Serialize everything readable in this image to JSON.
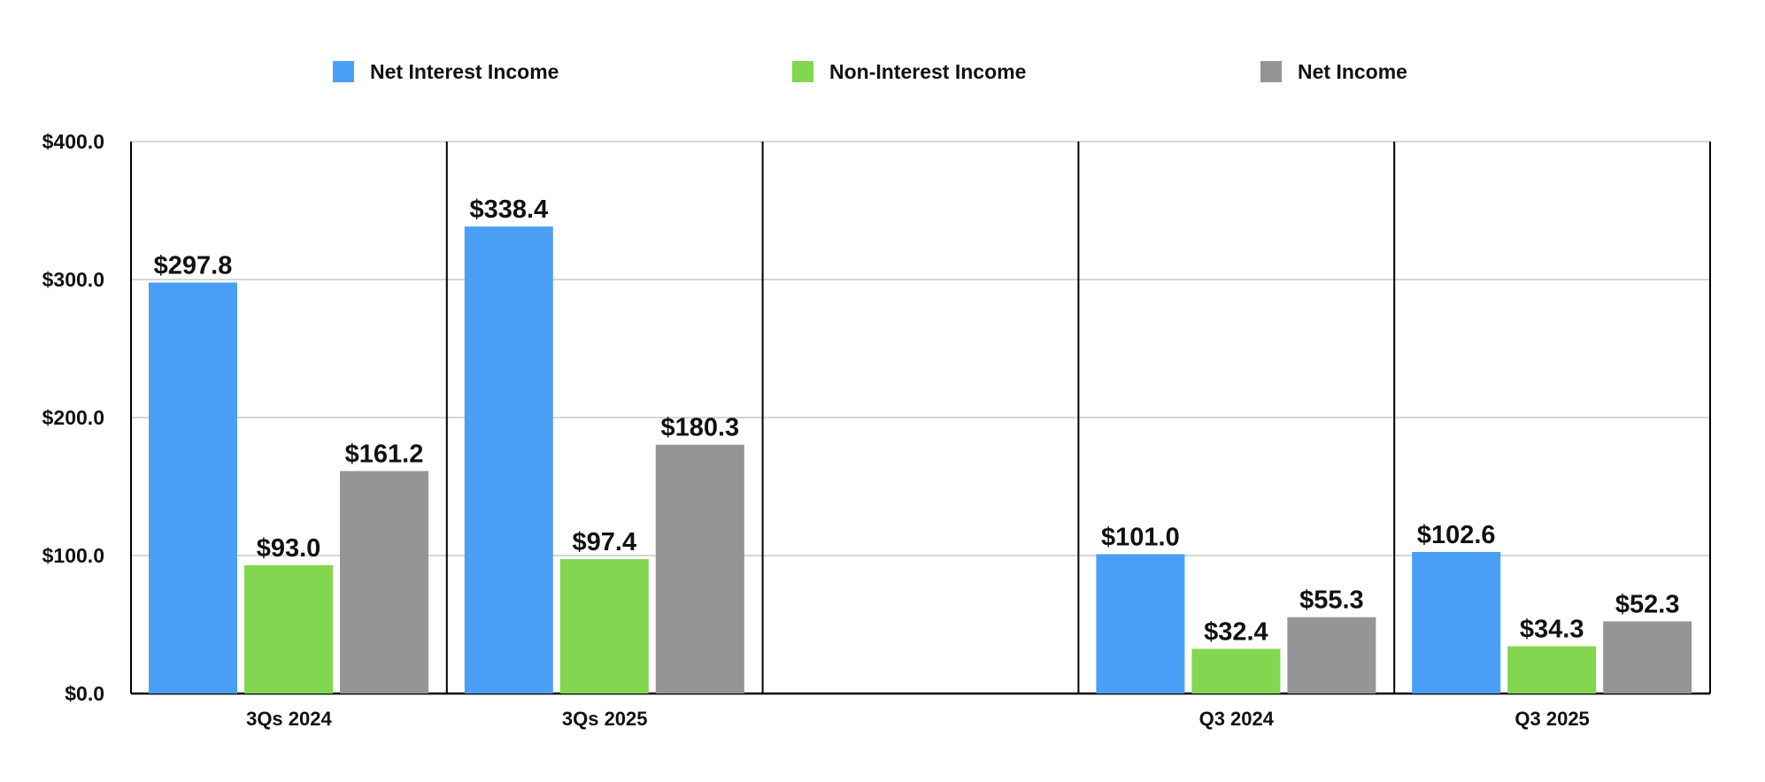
{
  "chart_data": {
    "type": "bar",
    "categories": [
      "3Qs 2024",
      "3Qs 2025",
      "",
      "Q3 2024",
      "Q3 2025"
    ],
    "series": [
      {
        "name": "Net Interest Income",
        "color": "#4a9ff5",
        "values": [
          297.8,
          338.4,
          null,
          101.0,
          102.6
        ],
        "labels": [
          "$297.8",
          "$338.4",
          "",
          "$101.0",
          "$102.6"
        ]
      },
      {
        "name": "Non-Interest Income",
        "color": "#82d650",
        "values": [
          93.0,
          97.4,
          null,
          32.4,
          34.3
        ],
        "labels": [
          "$93.0",
          "$97.4",
          "",
          "$32.4",
          "$34.3"
        ]
      },
      {
        "name": "Net Income",
        "color": "#959595",
        "values": [
          161.2,
          180.3,
          null,
          55.3,
          52.3
        ],
        "labels": [
          "$161.2",
          "$180.3",
          "",
          "$55.3",
          "$52.3"
        ]
      }
    ],
    "ylim": [
      0,
      400
    ],
    "yticks": [
      0,
      100,
      200,
      300,
      400
    ],
    "ytick_labels": [
      "$0.0",
      "$100.0",
      "$200.0",
      "$300.0",
      "$400.0"
    ],
    "grid": true,
    "legend_position": "top",
    "title": "",
    "xlabel": "",
    "ylabel": ""
  }
}
